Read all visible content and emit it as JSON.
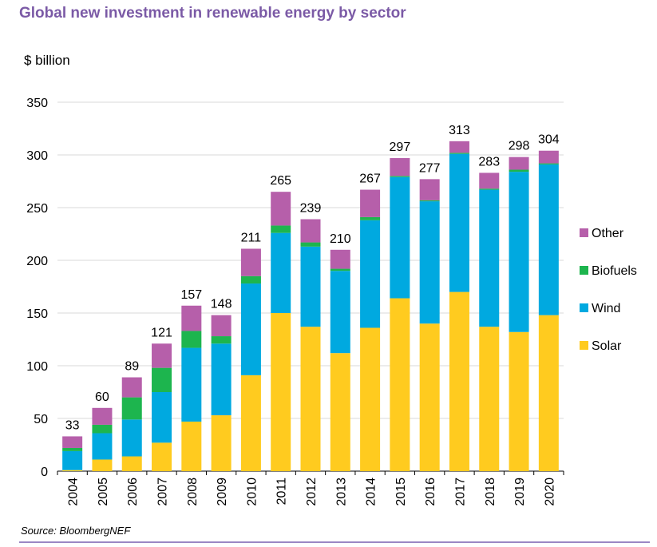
{
  "title": "Global new investment in renewable energy by sector",
  "source": "Source: BloombergNEF",
  "colors": {
    "title": "#7B5AA6",
    "rule": "#9B87C4"
  },
  "chart_data": {
    "type": "bar",
    "stacked": true,
    "ylabel": "$ billion",
    "xlabel": "",
    "ylim": [
      0,
      350
    ],
    "yticks": [
      0,
      50,
      100,
      150,
      200,
      250,
      300,
      350
    ],
    "grid": true,
    "legend_position": "right",
    "categories": [
      "2004",
      "2005",
      "2006",
      "2007",
      "2008",
      "2009",
      "2010",
      "2011",
      "2012",
      "2013",
      "2014",
      "2015",
      "2016",
      "2017",
      "2018",
      "2019",
      "2020"
    ],
    "series": [
      {
        "name": "Solar",
        "color": "#FFCB1F",
        "values": [
          1,
          11,
          14,
          27,
          47,
          53,
          91,
          150,
          137,
          112,
          136,
          164,
          140,
          170,
          137,
          132,
          148
        ]
      },
      {
        "name": "Wind",
        "color": "#00A9E0",
        "values": [
          18,
          25,
          35,
          48,
          70,
          68,
          87,
          76,
          76,
          78,
          102,
          115,
          116,
          131,
          130,
          152,
          143
        ]
      },
      {
        "name": "Biofuels",
        "color": "#1DB54E",
        "values": [
          3,
          8,
          21,
          23,
          16,
          7,
          7,
          7,
          4,
          2,
          3,
          1,
          1,
          1,
          1,
          2,
          1
        ]
      },
      {
        "name": "Other",
        "color": "#B65FAA",
        "values": [
          11,
          16,
          19,
          23,
          24,
          20,
          26,
          32,
          22,
          18,
          26,
          17,
          20,
          11,
          15,
          12,
          12
        ]
      }
    ],
    "totals": [
      33,
      60,
      89,
      121,
      157,
      148,
      211,
      265,
      239,
      210,
      267,
      297,
      277,
      313,
      283,
      298,
      304
    ],
    "legend_order": [
      "Other",
      "Biofuels",
      "Wind",
      "Solar"
    ]
  }
}
